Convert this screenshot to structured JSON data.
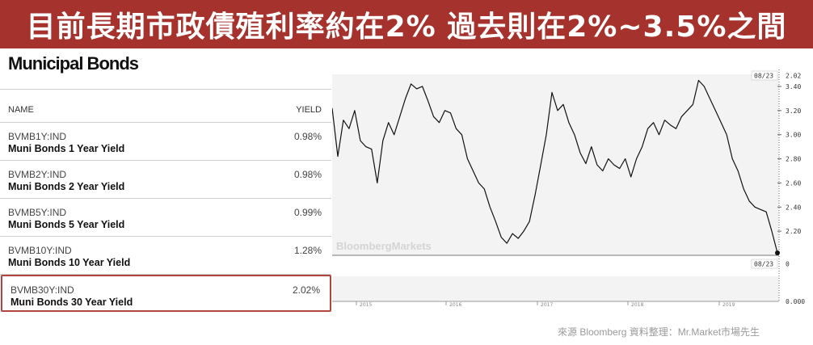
{
  "banner": {
    "title": "目前長期市政債殖利率約在2%  過去則在2%~3.5%之間"
  },
  "brand": "Municipal Bonds",
  "table": {
    "col_name": "NAME",
    "col_yield": "YIELD",
    "rows": [
      {
        "ticker": "BVMB1Y:IND",
        "name": "Muni Bonds 1 Year Yield",
        "yield": "0.98%"
      },
      {
        "ticker": "BVMB2Y:IND",
        "name": "Muni Bonds 2 Year Yield",
        "yield": "0.98%"
      },
      {
        "ticker": "BVMB5Y:IND",
        "name": "Muni Bonds 5 Year Yield",
        "yield": "0.99%"
      },
      {
        "ticker": "BVMB10Y:IND",
        "name": "Muni Bonds 10 Year Yield",
        "yield": "1.28%"
      },
      {
        "ticker": "BVMB30Y:IND",
        "name": "Muni Bonds 30 Year Yield",
        "yield": "2.02%"
      }
    ]
  },
  "chart_data": {
    "type": "line",
    "title": "",
    "xlabel": "",
    "ylabel": "",
    "x_ticks": [
      "2015",
      "2016",
      "2017",
      "2018",
      "2019"
    ],
    "y_ticks": [
      "3.40",
      "3.20",
      "3.00",
      "2.80",
      "2.60",
      "2.40",
      "2.20"
    ],
    "ylim": [
      2.0,
      3.5
    ],
    "volume_ticks": [
      "0",
      "0.000"
    ],
    "last_date_label": "08/23",
    "last_value_label": "2.02",
    "watermark": "BloombergMarkets",
    "series": [
      {
        "values": [
          3.22,
          2.82,
          3.12,
          3.05,
          3.2,
          2.95,
          2.9,
          2.88,
          2.6,
          2.95,
          3.1,
          3.0,
          3.15,
          3.3,
          3.42,
          3.38,
          3.4,
          3.28,
          3.15,
          3.1,
          3.2,
          3.18,
          3.05,
          3.0,
          2.8,
          2.7,
          2.6,
          2.55,
          2.4,
          2.28,
          2.15,
          2.1,
          2.18,
          2.14,
          2.2,
          2.28,
          2.5,
          2.75,
          3.0,
          3.35,
          3.2,
          3.25,
          3.1,
          3.0,
          2.85,
          2.76,
          2.9,
          2.75,
          2.7,
          2.8,
          2.75,
          2.72,
          2.8,
          2.65,
          2.8,
          2.9,
          3.05,
          3.1,
          3.0,
          3.12,
          3.08,
          3.05,
          3.15,
          3.2,
          3.25,
          3.45,
          3.4,
          3.3,
          3.2,
          3.1,
          3.0,
          2.8,
          2.7,
          2.55,
          2.45,
          2.4,
          2.38,
          2.36,
          2.2,
          2.02
        ]
      }
    ]
  },
  "source": "來源 Bloomberg  資料整理：Mr.Market市場先生"
}
